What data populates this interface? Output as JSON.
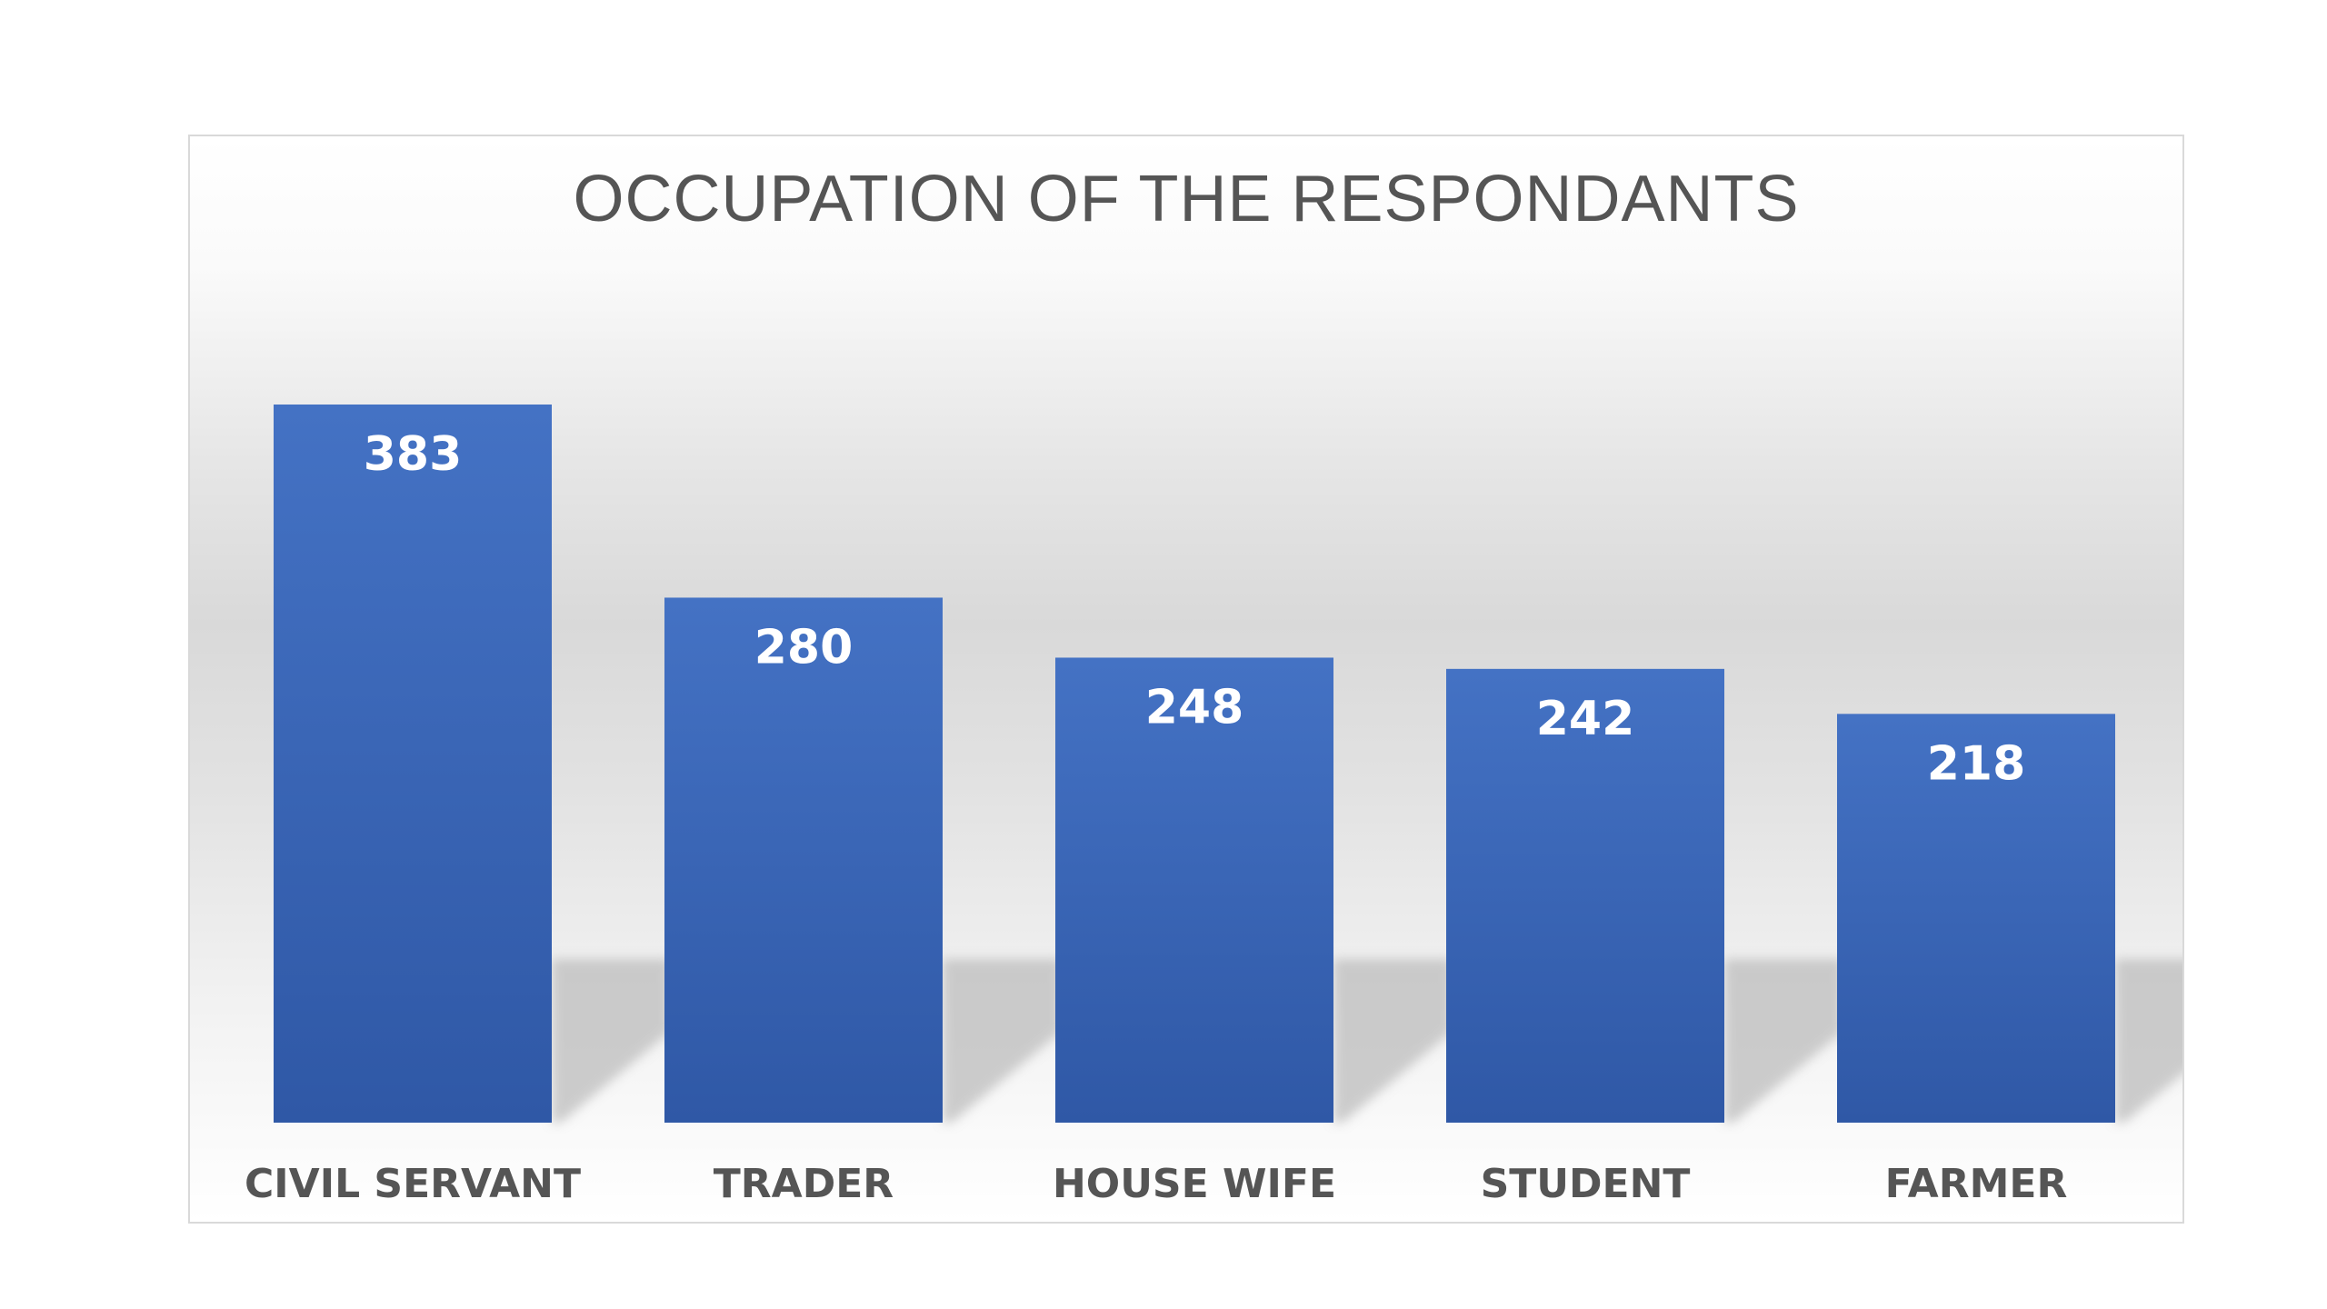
{
  "chart_data": {
    "type": "bar",
    "title": "OCCUPATION OF THE RESPONDANTS",
    "categories": [
      "CIVIL SERVANT",
      "TRADER",
      "HOUSE WIFE",
      "STUDENT",
      "FARMER"
    ],
    "values": [
      383,
      280,
      248,
      242,
      218
    ],
    "data_labels": [
      "383",
      "280",
      "248",
      "242",
      "218"
    ],
    "xlabel": "",
    "ylabel": "",
    "grid": false,
    "legend": "none",
    "colors": {
      "bar_top": "#4472c4",
      "bar_bottom": "#2f58a6",
      "shadow": "#bdbdbd",
      "label_text": "#ffffff",
      "axis_text": "#555555"
    }
  }
}
